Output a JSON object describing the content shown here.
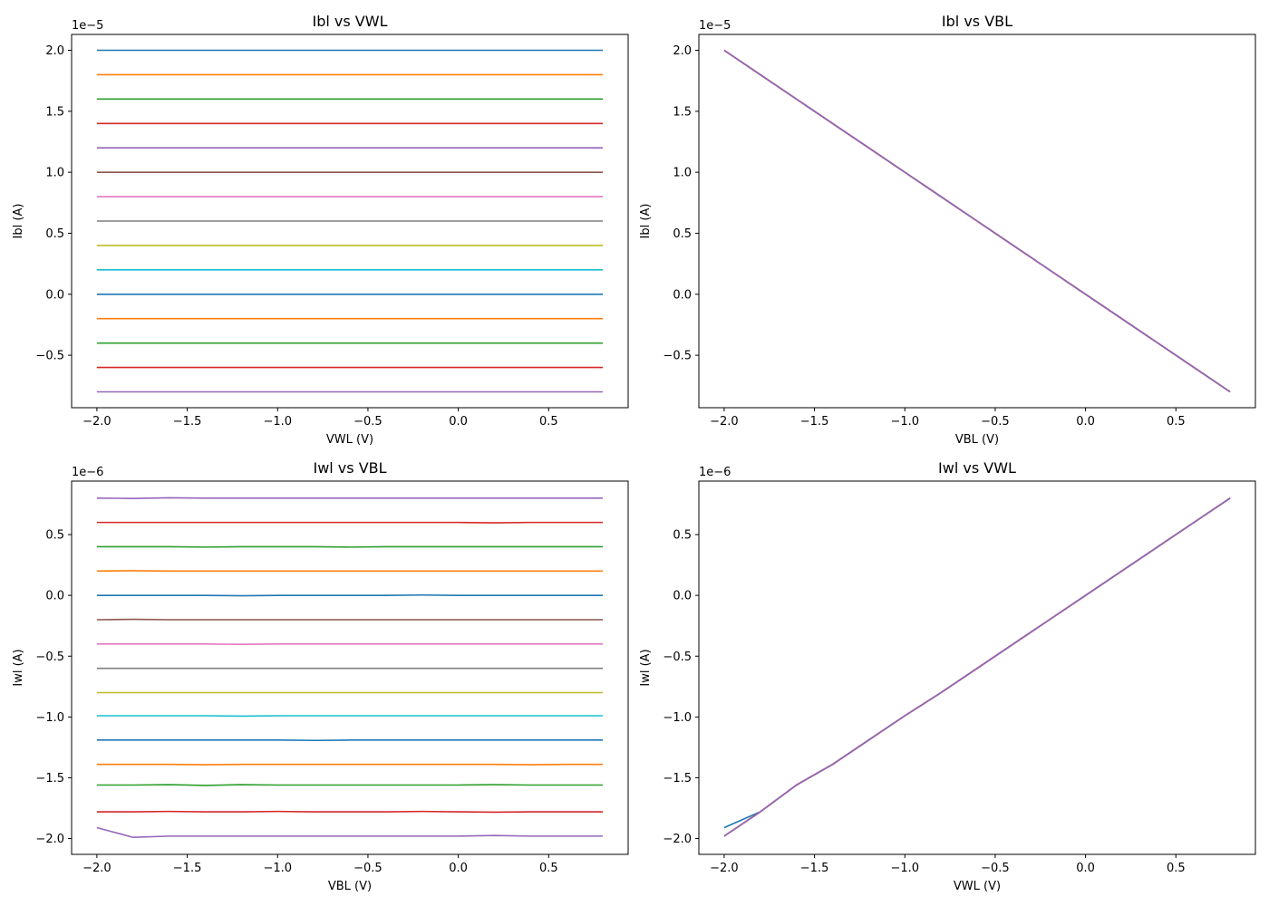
{
  "colors": [
    "#1f77b4",
    "#ff7f0e",
    "#2ca02c",
    "#d62728",
    "#9467bd",
    "#8c564b",
    "#e377c2",
    "#7f7f7f",
    "#bcbd22",
    "#17becf"
  ],
  "chart_data": [
    {
      "id": "ibl-vs-vwl",
      "type": "line",
      "title": "Ibl vs VWL",
      "xlabel": "VWL (V)",
      "ylabel": "Ibl (A)",
      "offset_text": "1e−5",
      "xlim": [
        -2.14,
        0.94
      ],
      "ylim": [
        -0.93,
        2.13
      ],
      "xticks": [
        -2.0,
        -1.5,
        -1.0,
        -0.5,
        0.0,
        0.5
      ],
      "xtick_labels": [
        "−2.0",
        "−1.5",
        "−1.0",
        "−0.5",
        "0.0",
        "0.5"
      ],
      "yticks": [
        -0.5,
        0.0,
        0.5,
        1.0,
        1.5,
        2.0
      ],
      "ytick_labels": [
        "−0.5",
        "0.0",
        "0.5",
        "1.0",
        "1.5",
        "2.0"
      ],
      "x": [
        -2.0,
        -1.8,
        -1.6,
        -1.4,
        -1.2,
        -1.0,
        -0.8,
        -0.6,
        -0.4,
        -0.2,
        0.0,
        0.2,
        0.4,
        0.6,
        0.8
      ],
      "series": [
        {
          "values": [
            2.0,
            2.0,
            2.0,
            2.0,
            2.0,
            2.0,
            2.0,
            2.0,
            2.0,
            2.0,
            2.0,
            2.0,
            2.0,
            2.0,
            2.0
          ]
        },
        {
          "values": [
            1.8,
            1.8,
            1.8,
            1.8,
            1.8,
            1.8,
            1.8,
            1.8,
            1.8,
            1.8,
            1.8,
            1.8,
            1.8,
            1.8,
            1.8
          ]
        },
        {
          "values": [
            1.6,
            1.6,
            1.6,
            1.6,
            1.6,
            1.6,
            1.6,
            1.6,
            1.6,
            1.6,
            1.6,
            1.6,
            1.6,
            1.6,
            1.6
          ]
        },
        {
          "values": [
            1.4,
            1.4,
            1.4,
            1.4,
            1.4,
            1.4,
            1.4,
            1.4,
            1.4,
            1.4,
            1.4,
            1.4,
            1.4,
            1.4,
            1.4
          ]
        },
        {
          "values": [
            1.2,
            1.2,
            1.2,
            1.2,
            1.2,
            1.2,
            1.2,
            1.2,
            1.2,
            1.2,
            1.2,
            1.2,
            1.2,
            1.2,
            1.2
          ]
        },
        {
          "values": [
            1.0,
            1.0,
            1.0,
            1.0,
            1.0,
            1.0,
            1.0,
            1.0,
            1.0,
            1.0,
            1.0,
            1.0,
            1.0,
            1.0,
            1.0
          ]
        },
        {
          "values": [
            0.8,
            0.8,
            0.8,
            0.8,
            0.8,
            0.8,
            0.8,
            0.8,
            0.8,
            0.8,
            0.8,
            0.8,
            0.8,
            0.8,
            0.8
          ]
        },
        {
          "values": [
            0.6,
            0.6,
            0.6,
            0.6,
            0.6,
            0.6,
            0.6,
            0.6,
            0.6,
            0.6,
            0.6,
            0.6,
            0.6,
            0.6,
            0.6
          ]
        },
        {
          "values": [
            0.4,
            0.4,
            0.4,
            0.4,
            0.4,
            0.4,
            0.4,
            0.4,
            0.4,
            0.4,
            0.4,
            0.4,
            0.4,
            0.4,
            0.4
          ]
        },
        {
          "values": [
            0.2,
            0.2,
            0.2,
            0.2,
            0.2,
            0.2,
            0.2,
            0.2,
            0.2,
            0.2,
            0.2,
            0.2,
            0.2,
            0.2,
            0.2
          ]
        },
        {
          "values": [
            0.0,
            0.0,
            0.0,
            0.0,
            0.0,
            0.0,
            0.0,
            0.0,
            0.0,
            0.0,
            0.0,
            0.0,
            0.0,
            0.0,
            0.0
          ]
        },
        {
          "values": [
            -0.2,
            -0.2,
            -0.2,
            -0.2,
            -0.2,
            -0.2,
            -0.2,
            -0.2,
            -0.2,
            -0.2,
            -0.2,
            -0.2,
            -0.2,
            -0.2,
            -0.2
          ]
        },
        {
          "values": [
            -0.4,
            -0.4,
            -0.4,
            -0.4,
            -0.4,
            -0.4,
            -0.4,
            -0.4,
            -0.4,
            -0.4,
            -0.4,
            -0.4,
            -0.4,
            -0.4,
            -0.4
          ]
        },
        {
          "values": [
            -0.6,
            -0.6,
            -0.6,
            -0.6,
            -0.6,
            -0.6,
            -0.6,
            -0.6,
            -0.6,
            -0.6,
            -0.6,
            -0.6,
            -0.6,
            -0.6,
            -0.6
          ]
        },
        {
          "values": [
            -0.8,
            -0.8,
            -0.8,
            -0.8,
            -0.8,
            -0.8,
            -0.8,
            -0.8,
            -0.8,
            -0.8,
            -0.8,
            -0.8,
            -0.8,
            -0.8,
            -0.8
          ]
        }
      ]
    },
    {
      "id": "ibl-vs-vbl",
      "type": "line",
      "title": "Ibl vs VBL",
      "xlabel": "VBL (V)",
      "ylabel": "Ibl (A)",
      "offset_text": "1e−5",
      "xlim": [
        -2.14,
        0.94
      ],
      "ylim": [
        -0.93,
        2.13
      ],
      "xticks": [
        -2.0,
        -1.5,
        -1.0,
        -0.5,
        0.0,
        0.5
      ],
      "xtick_labels": [
        "−2.0",
        "−1.5",
        "−1.0",
        "−0.5",
        "0.0",
        "0.5"
      ],
      "yticks": [
        -0.5,
        0.0,
        0.5,
        1.0,
        1.5,
        2.0
      ],
      "ytick_labels": [
        "−0.5",
        "0.0",
        "0.5",
        "1.0",
        "1.5",
        "2.0"
      ],
      "x": [
        -2.0,
        -1.8,
        -1.6,
        -1.4,
        -1.2,
        -1.0,
        -0.8,
        -0.6,
        -0.4,
        -0.2,
        0.0,
        0.2,
        0.4,
        0.6,
        0.8
      ],
      "series": [
        {
          "values": [
            2.0,
            1.8,
            1.6,
            1.4,
            1.2,
            1.0,
            0.8,
            0.6,
            0.4,
            0.2,
            0.0,
            -0.2,
            -0.4,
            -0.6,
            -0.8
          ]
        },
        {
          "values": [
            2.0,
            1.8,
            1.6,
            1.4,
            1.2,
            1.0,
            0.8,
            0.6,
            0.4,
            0.2,
            0.0,
            -0.2,
            -0.4,
            -0.6,
            -0.8
          ]
        },
        {
          "values": [
            2.0,
            1.8,
            1.6,
            1.4,
            1.2,
            1.0,
            0.8,
            0.6,
            0.4,
            0.2,
            0.0,
            -0.2,
            -0.4,
            -0.6,
            -0.8
          ]
        },
        {
          "values": [
            2.0,
            1.8,
            1.6,
            1.4,
            1.2,
            1.0,
            0.8,
            0.6,
            0.4,
            0.2,
            0.0,
            -0.2,
            -0.4,
            -0.6,
            -0.8
          ]
        },
        {
          "values": [
            2.0,
            1.8,
            1.6,
            1.4,
            1.2,
            1.0,
            0.8,
            0.6,
            0.4,
            0.2,
            0.0,
            -0.2,
            -0.4,
            -0.6,
            -0.8
          ]
        }
      ]
    },
    {
      "id": "iwl-vs-vbl",
      "type": "line",
      "title": "Iwl vs VBL",
      "xlabel": "VBL (V)",
      "ylabel": "Iwl (A)",
      "offset_text": "1e−6",
      "xlim": [
        -2.14,
        0.94
      ],
      "ylim": [
        -2.13,
        0.94
      ],
      "xticks": [
        -2.0,
        -1.5,
        -1.0,
        -0.5,
        0.0,
        0.5
      ],
      "xtick_labels": [
        "−2.0",
        "−1.5",
        "−1.0",
        "−0.5",
        "0.0",
        "0.5"
      ],
      "yticks": [
        -2.0,
        -1.5,
        -1.0,
        -0.5,
        0.0,
        0.5
      ],
      "ytick_labels": [
        "−2.0",
        "−1.5",
        "−1.0",
        "−0.5",
        "0.0",
        "0.5"
      ],
      "x": [
        -2.0,
        -1.8,
        -1.6,
        -1.4,
        -1.2,
        -1.0,
        -0.8,
        -0.6,
        -0.4,
        -0.2,
        0.0,
        0.2,
        0.4,
        0.6,
        0.8
      ],
      "series": [
        {
          "values": [
            0.0,
            0.0,
            0.0,
            0.0,
            -0.003,
            0.0,
            0.0,
            0.0,
            0.0,
            0.003,
            0.0,
            0.0,
            0.0,
            0.0,
            0.0
          ]
        },
        {
          "values": [
            0.2,
            0.203,
            0.2,
            0.2,
            0.2,
            0.2,
            0.2,
            0.2,
            0.2,
            0.2,
            0.2,
            0.2,
            0.2,
            0.2,
            0.2
          ]
        },
        {
          "values": [
            0.4,
            0.4,
            0.4,
            0.397,
            0.4,
            0.4,
            0.4,
            0.397,
            0.4,
            0.4,
            0.4,
            0.4,
            0.4,
            0.4,
            0.4
          ]
        },
        {
          "values": [
            0.6,
            0.6,
            0.6,
            0.6,
            0.6,
            0.6,
            0.6,
            0.6,
            0.6,
            0.6,
            0.6,
            0.597,
            0.6,
            0.6,
            0.6
          ]
        },
        {
          "values": [
            0.8,
            0.797,
            0.803,
            0.8,
            0.8,
            0.8,
            0.8,
            0.8,
            0.8,
            0.8,
            0.8,
            0.8,
            0.8,
            0.8,
            0.8
          ]
        },
        {
          "values": [
            -0.2,
            -0.197,
            -0.2,
            -0.2,
            -0.2,
            -0.2,
            -0.2,
            -0.2,
            -0.2,
            -0.2,
            -0.2,
            -0.2,
            -0.2,
            -0.2,
            -0.2
          ]
        },
        {
          "values": [
            -0.4,
            -0.4,
            -0.4,
            -0.4,
            -0.403,
            -0.4,
            -0.4,
            -0.4,
            -0.4,
            -0.4,
            -0.4,
            -0.4,
            -0.4,
            -0.4,
            -0.4
          ]
        },
        {
          "values": [
            -0.6,
            -0.6,
            -0.6,
            -0.6,
            -0.6,
            -0.6,
            -0.6,
            -0.6,
            -0.6,
            -0.6,
            -0.6,
            -0.6,
            -0.6,
            -0.6,
            -0.6
          ]
        },
        {
          "values": [
            -0.8,
            -0.8,
            -0.8,
            -0.8,
            -0.8,
            -0.8,
            -0.8,
            -0.8,
            -0.8,
            -0.8,
            -0.8,
            -0.8,
            -0.8,
            -0.8,
            -0.8
          ]
        },
        {
          "values": [
            -0.99,
            -0.99,
            -0.99,
            -0.99,
            -0.993,
            -0.99,
            -0.99,
            -0.99,
            -0.99,
            -0.99,
            -0.99,
            -0.99,
            -0.99,
            -0.99,
            -0.99
          ]
        },
        {
          "values": [
            -1.19,
            -1.19,
            -1.19,
            -1.19,
            -1.19,
            -1.19,
            -1.193,
            -1.19,
            -1.19,
            -1.19,
            -1.19,
            -1.19,
            -1.19,
            -1.19,
            -1.19
          ]
        },
        {
          "values": [
            -1.39,
            -1.39,
            -1.39,
            -1.393,
            -1.39,
            -1.39,
            -1.39,
            -1.39,
            -1.39,
            -1.39,
            -1.39,
            -1.39,
            -1.393,
            -1.39,
            -1.39
          ]
        },
        {
          "values": [
            -1.56,
            -1.56,
            -1.557,
            -1.563,
            -1.557,
            -1.56,
            -1.56,
            -1.56,
            -1.56,
            -1.56,
            -1.56,
            -1.557,
            -1.56,
            -1.56,
            -1.56
          ]
        },
        {
          "values": [
            -1.78,
            -1.78,
            -1.777,
            -1.78,
            -1.78,
            -1.777,
            -1.78,
            -1.78,
            -1.78,
            -1.777,
            -1.78,
            -1.783,
            -1.78,
            -1.78,
            -1.78
          ]
        },
        {
          "values": [
            -1.91,
            -1.99,
            -1.98,
            -1.98,
            -1.98,
            -1.98,
            -1.98,
            -1.98,
            -1.98,
            -1.98,
            -1.98,
            -1.975,
            -1.98,
            -1.98,
            -1.98
          ]
        }
      ]
    },
    {
      "id": "iwl-vs-vwl",
      "type": "line",
      "title": "Iwl vs VWL",
      "xlabel": "VWL (V)",
      "ylabel": "Iwl (A)",
      "offset_text": "1e−6",
      "xlim": [
        -2.14,
        0.94
      ],
      "ylim": [
        -2.13,
        0.94
      ],
      "xticks": [
        -2.0,
        -1.5,
        -1.0,
        -0.5,
        0.0,
        0.5
      ],
      "xtick_labels": [
        "−2.0",
        "−1.5",
        "−1.0",
        "−0.5",
        "0.0",
        "0.5"
      ],
      "yticks": [
        -2.0,
        -1.5,
        -1.0,
        -0.5,
        0.0,
        0.5
      ],
      "ytick_labels": [
        "−2.0",
        "−1.5",
        "−1.0",
        "−0.5",
        "0.0",
        "0.5"
      ],
      "x": [
        -2.0,
        -1.8,
        -1.6,
        -1.4,
        -1.2,
        -1.0,
        -0.8,
        -0.6,
        -0.4,
        -0.2,
        0.0,
        0.2,
        0.4,
        0.6,
        0.8
      ],
      "series": [
        {
          "values": [
            -1.91,
            -1.78,
            -1.56,
            -1.39,
            -1.19,
            -0.99,
            -0.8,
            -0.6,
            -0.4,
            -0.2,
            0.0,
            0.2,
            0.4,
            0.6,
            0.8
          ]
        },
        {
          "values": [
            -1.98,
            -1.78,
            -1.56,
            -1.39,
            -1.19,
            -0.99,
            -0.8,
            -0.6,
            -0.4,
            -0.2,
            0.0,
            0.2,
            0.4,
            0.6,
            0.8
          ]
        },
        {
          "values": [
            -1.98,
            -1.78,
            -1.56,
            -1.39,
            -1.19,
            -0.99,
            -0.8,
            -0.6,
            -0.4,
            -0.2,
            0.0,
            0.2,
            0.4,
            0.6,
            0.8
          ]
        },
        {
          "values": [
            -1.98,
            -1.78,
            -1.56,
            -1.39,
            -1.19,
            -0.99,
            -0.8,
            -0.6,
            -0.4,
            -0.2,
            0.0,
            0.2,
            0.4,
            0.6,
            0.8
          ]
        },
        {
          "values": [
            -1.98,
            -1.78,
            -1.56,
            -1.39,
            -1.19,
            -0.99,
            -0.8,
            -0.6,
            -0.4,
            -0.2,
            0.0,
            0.2,
            0.4,
            0.6,
            0.8
          ]
        }
      ]
    }
  ]
}
